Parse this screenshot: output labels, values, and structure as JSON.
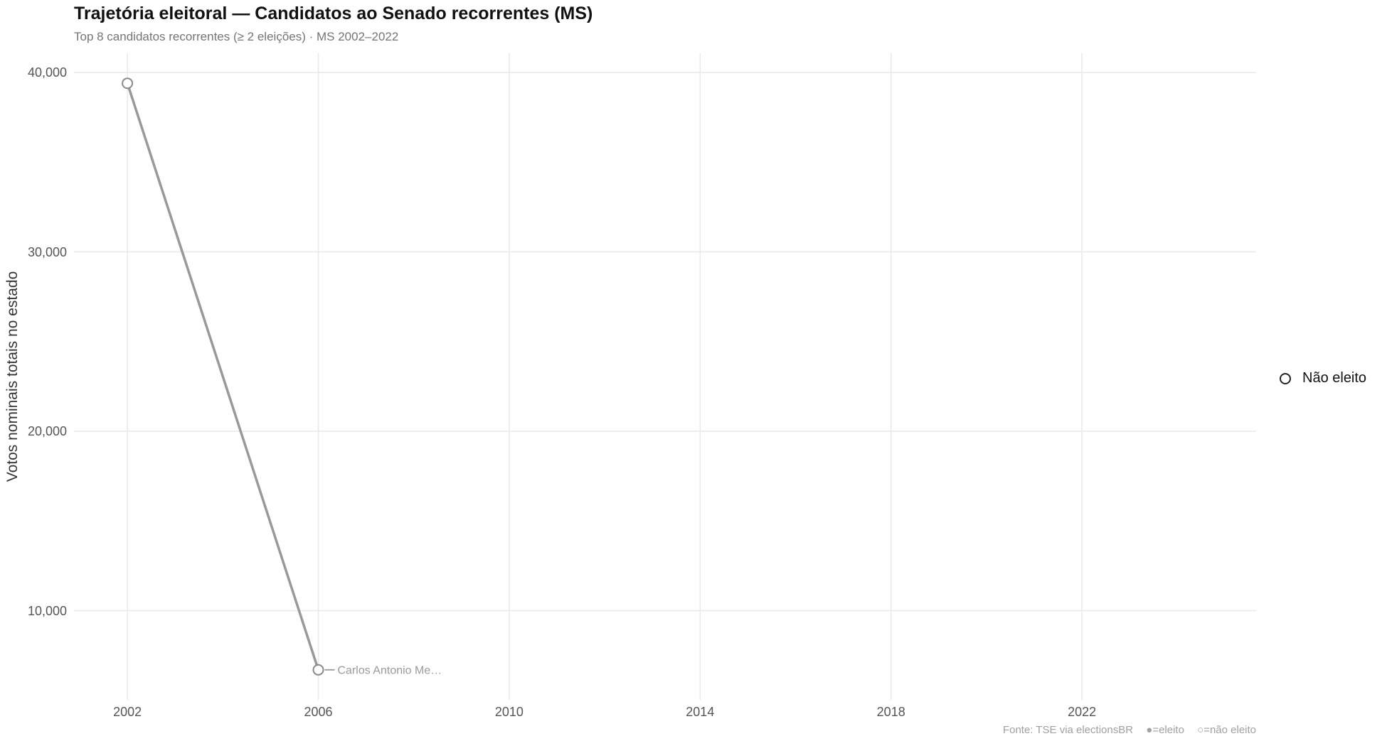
{
  "header": {
    "title": "Trajetória eleitoral — Candidatos ao Senado recorrentes (MS)",
    "subtitle": "Top 8 candidatos recorrentes (≥ 2 eleições) · MS 2002–2022"
  },
  "axes": {
    "y_title": "Votos nominais totais no estado"
  },
  "legend": {
    "items": [
      {
        "label": "Não eleito",
        "marker": "open-circle"
      }
    ]
  },
  "footer": {
    "source": "Fonte: TSE via electionsBR",
    "elected_key": "●=eleito",
    "not_elected_key": "○=não eleito"
  },
  "colors": {
    "title": "#111111",
    "subtitle": "#757575",
    "tick_label": "#555555",
    "axis_title": "#333333",
    "gridline": "#e9e9e9",
    "series_line": "#999999",
    "marker_stroke": "#8a8a8a",
    "marker_fill": "#ffffff",
    "point_label": "#9a9a9a",
    "legend_text": "#111111",
    "legend_marker": "#222222",
    "footer_text": "#a0a0a0",
    "background": "#ffffff"
  },
  "chart_data": {
    "type": "line",
    "title": "Trajetória eleitoral — Candidatos ao Senado recorrentes (MS)",
    "subtitle": "Top 8 candidatos recorrentes (≥ 2 eleições) · MS 2002–2022",
    "xlabel": "",
    "ylabel": "Votos nominais totais no estado",
    "x_ticks": [
      2002,
      2006,
      2010,
      2014,
      2018,
      2022
    ],
    "x_tick_labels": [
      "2002",
      "2006",
      "2010",
      "2014",
      "2018",
      "2022"
    ],
    "y_ticks": [
      10000,
      20000,
      30000,
      40000
    ],
    "y_tick_labels": [
      "10,000",
      "20,000",
      "30,000",
      "40,000"
    ],
    "x_domain": [
      2000.88,
      2025.65
    ],
    "y_domain": [
      5030,
      41070
    ],
    "grid": true,
    "legend_position": "right-center",
    "series": [
      {
        "name": "Carlos Antonio Me…",
        "end_label": "Carlos Antonio Me…",
        "x": [
          2002,
          2006
        ],
        "y": [
          39400,
          6700
        ],
        "elected": [
          false,
          false
        ],
        "marker": "open-circle"
      }
    ]
  }
}
